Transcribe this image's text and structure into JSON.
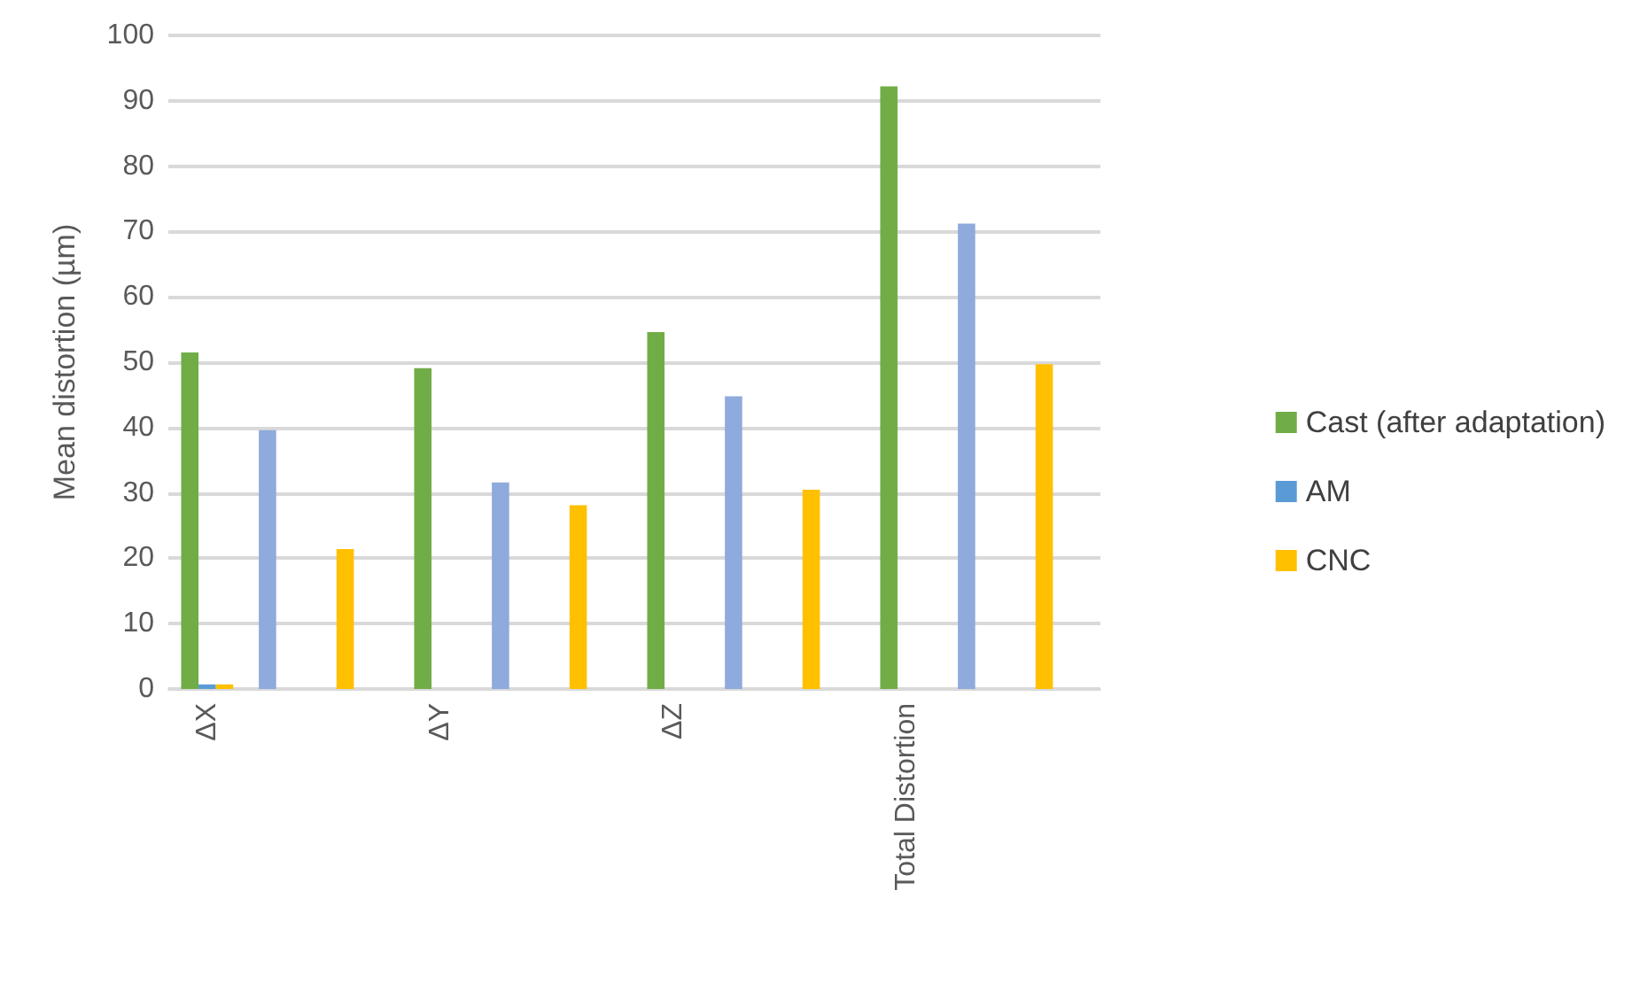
{
  "chart_data": {
    "type": "bar",
    "ylabel": "Mean distortion (µm)",
    "categories": [
      "ΔX",
      null,
      null,
      "ΔY",
      null,
      null,
      "ΔZ",
      null,
      null,
      "Total Distortion",
      null,
      null
    ],
    "series": [
      {
        "name": "Cast (after adaptation)",
        "color": "#70ad47",
        "colors": [
          "#70ad47",
          "#8faadc",
          "#ffc000",
          "#70ad47",
          "#8faadc",
          "#ffc000",
          "#70ad47",
          "#8faadc",
          "#ffc000",
          "#70ad47",
          "#8faadc",
          "#ffc000"
        ],
        "values": [
          51.5,
          39.6,
          21.4,
          49.1,
          31.6,
          28.1,
          54.6,
          44.8,
          30.5,
          92.2,
          71.2,
          49.7
        ]
      },
      {
        "name": "AM",
        "color": "#5b9bd5",
        "values": [
          0.7,
          null,
          null,
          null,
          null,
          null,
          null,
          null,
          null,
          null,
          null,
          null
        ]
      },
      {
        "name": "CNC",
        "color": "#ffc000",
        "values": [
          0.7,
          null,
          null,
          null,
          null,
          null,
          null,
          null,
          null,
          null,
          null,
          null
        ]
      }
    ],
    "ylim": [
      0,
      100
    ],
    "yticks": [
      0,
      10,
      20,
      30,
      40,
      50,
      60,
      70,
      80,
      90,
      100
    ],
    "grid": "y",
    "legend": "right"
  }
}
